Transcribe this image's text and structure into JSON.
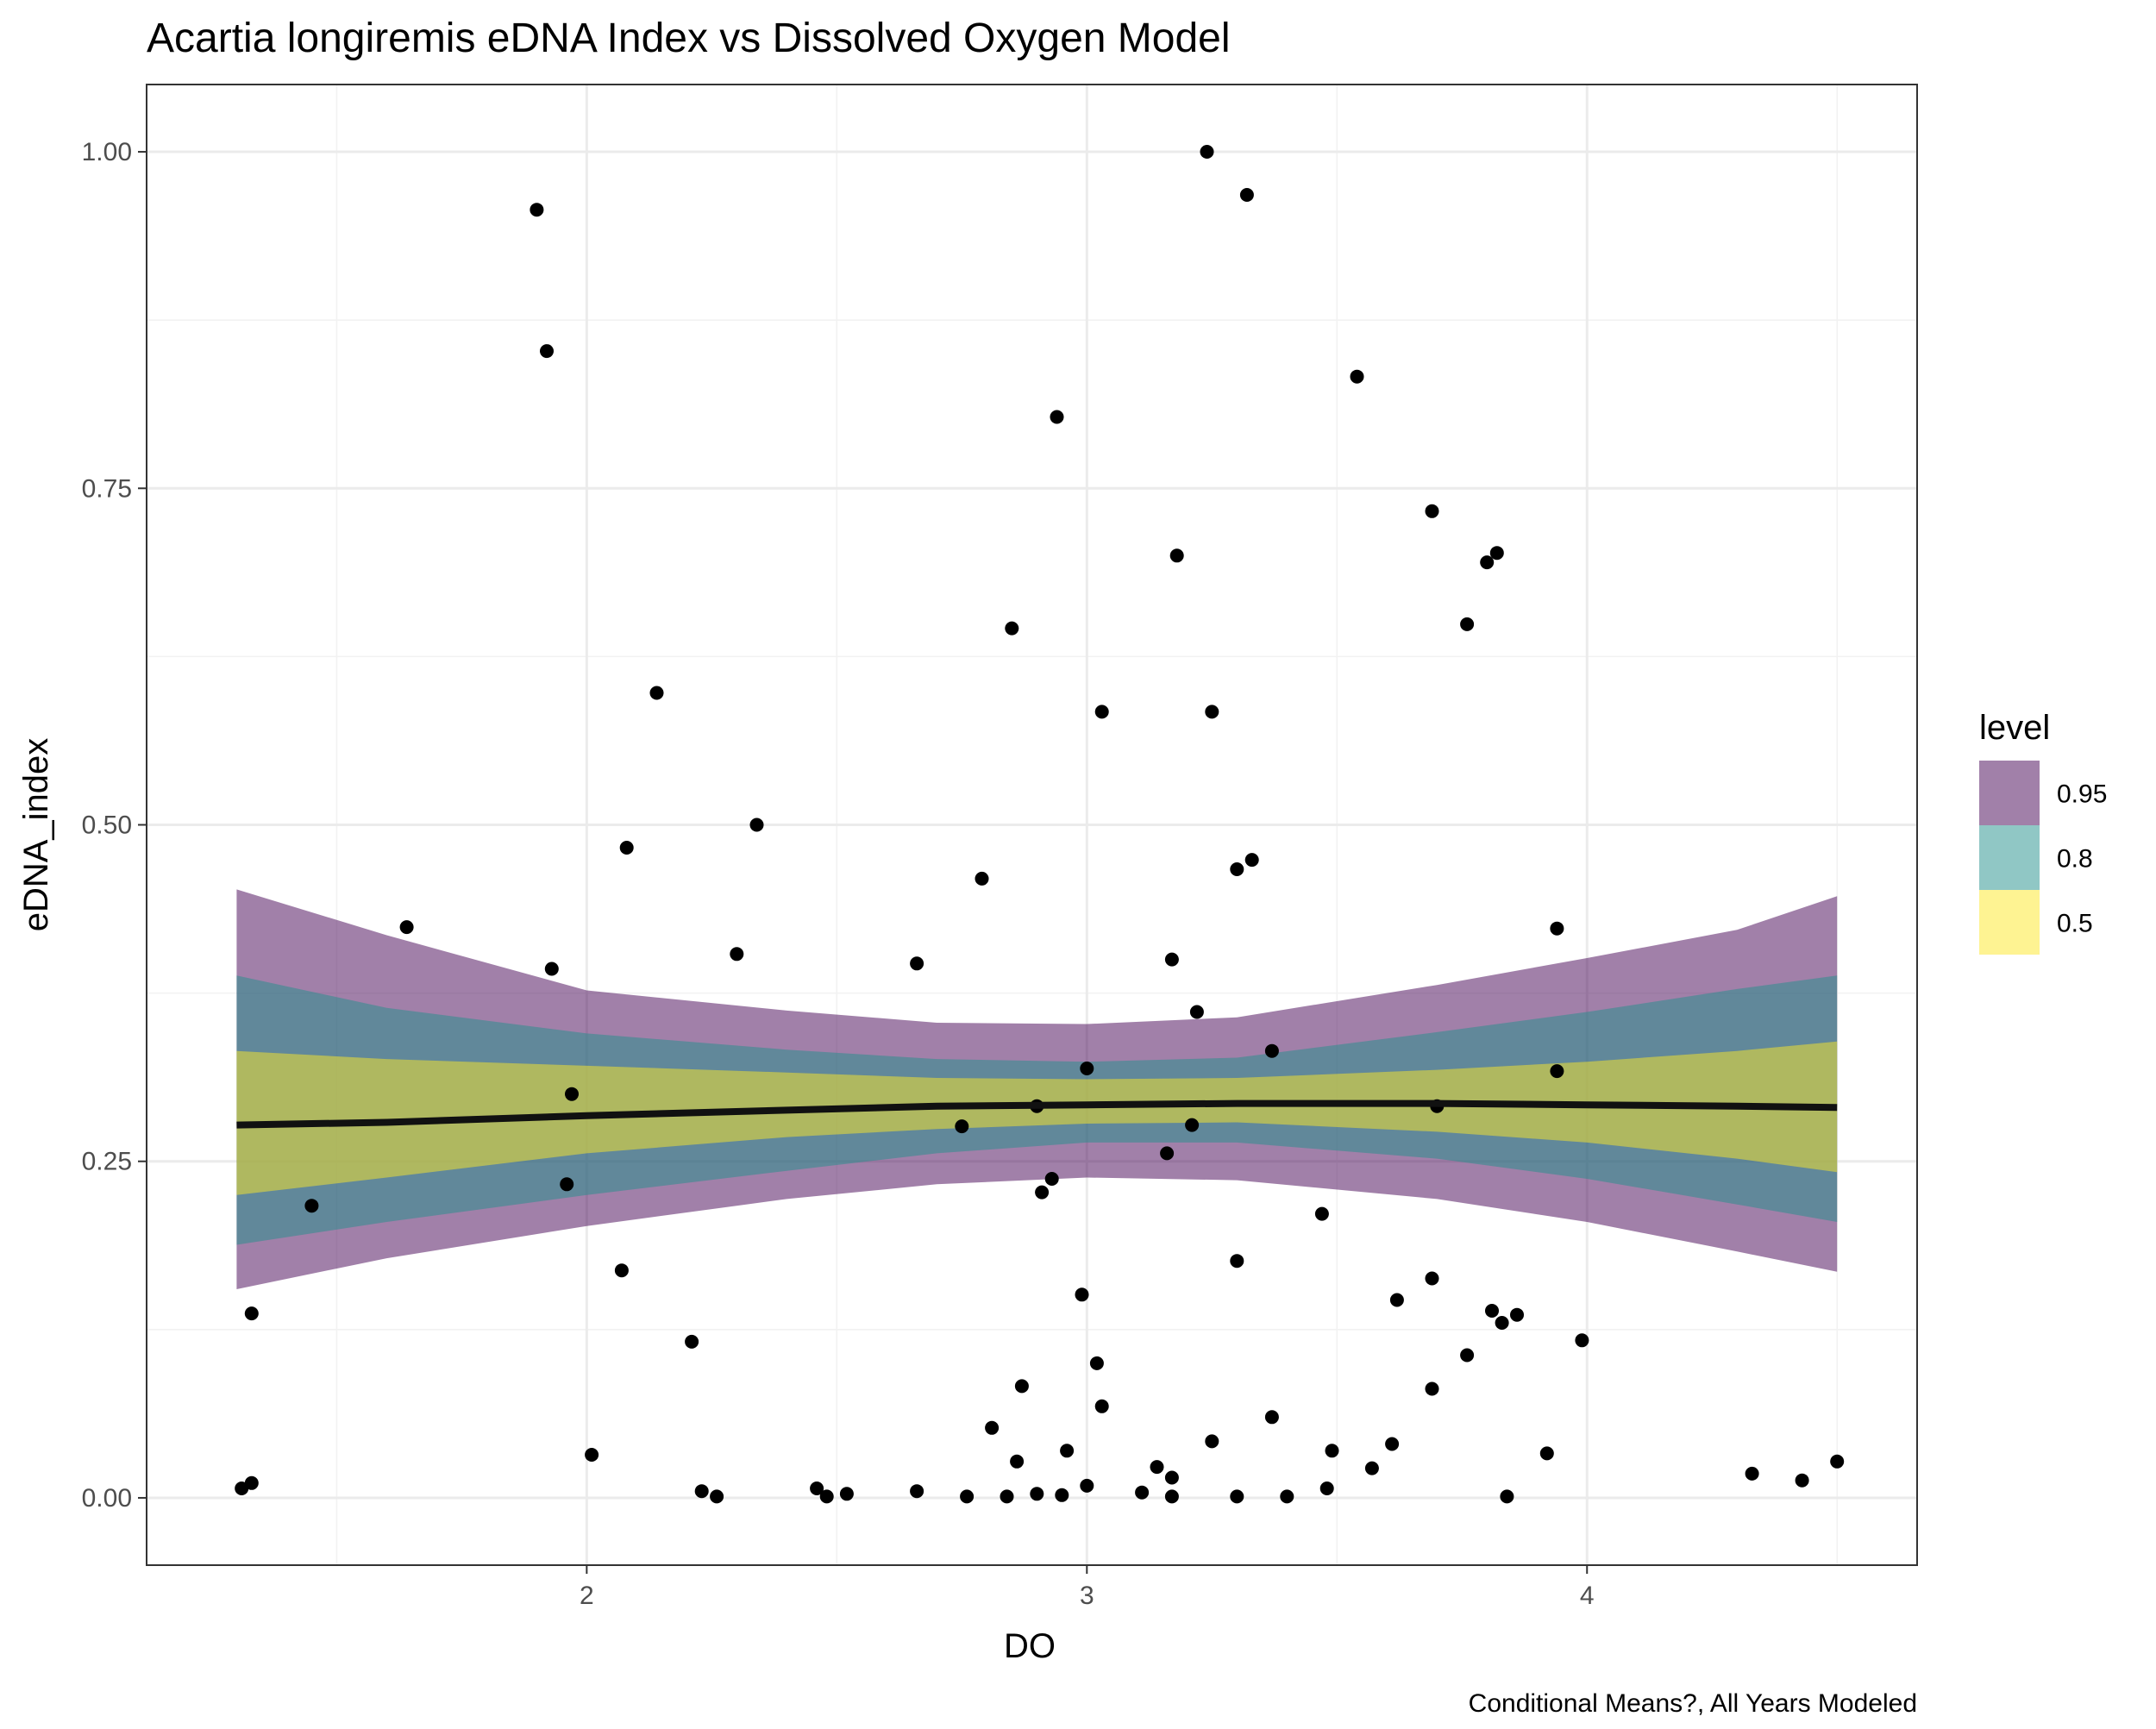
{
  "chart_data": {
    "type": "scatter",
    "title": "Acartia longiremis eDNA Index vs Dissolved Oxygen Model",
    "xlabel": "DO",
    "ylabel": "eDNA_index",
    "caption": "Conditional Means?, All Years Modeled",
    "xlim": [
      1.12,
      4.66
    ],
    "ylim": [
      -0.05,
      1.05
    ],
    "x_ticks": [
      2,
      3,
      4
    ],
    "x_tick_labels": [
      "2",
      "3",
      "4"
    ],
    "y_ticks": [
      0,
      0.25,
      0.5,
      0.75,
      1
    ],
    "y_tick_labels": [
      "0.00",
      "0.25",
      "0.50",
      "0.75",
      "1.00"
    ],
    "grid": true,
    "legend": {
      "title": "level",
      "position": "right",
      "items": [
        {
          "label": "0.95",
          "color": "#440154"
        },
        {
          "label": "0.8",
          "color": "#21908C"
        },
        {
          "label": "0.5",
          "color": "#FDE725"
        }
      ]
    },
    "fit_line": {
      "color": "#111111",
      "x": [
        1.3,
        1.6,
        2.0,
        2.4,
        2.7,
        3.0,
        3.3,
        3.7,
        4.0,
        4.3,
        4.5
      ],
      "y": [
        0.277,
        0.279,
        0.284,
        0.288,
        0.291,
        0.292,
        0.293,
        0.293,
        0.292,
        0.291,
        0.29
      ]
    },
    "ribbons": [
      {
        "level": "0.95",
        "color": "#440154",
        "opacity": 0.5,
        "x": [
          1.3,
          1.6,
          2.0,
          2.4,
          2.7,
          3.0,
          3.3,
          3.7,
          4.0,
          4.3,
          4.5
        ],
        "lower": [
          0.155,
          0.178,
          0.202,
          0.222,
          0.233,
          0.238,
          0.236,
          0.222,
          0.205,
          0.183,
          0.168
        ],
        "upper": [
          0.452,
          0.418,
          0.377,
          0.362,
          0.353,
          0.352,
          0.357,
          0.381,
          0.401,
          0.422,
          0.447
        ]
      },
      {
        "level": "0.8",
        "color": "#21908C",
        "opacity": 0.5,
        "x": [
          1.3,
          1.6,
          2.0,
          2.4,
          2.7,
          3.0,
          3.3,
          3.7,
          4.0,
          4.3,
          4.5
        ],
        "lower": [
          0.188,
          0.205,
          0.225,
          0.243,
          0.256,
          0.264,
          0.264,
          0.252,
          0.237,
          0.218,
          0.205
        ],
        "upper": [
          0.388,
          0.364,
          0.345,
          0.333,
          0.326,
          0.324,
          0.327,
          0.346,
          0.361,
          0.378,
          0.388
        ]
      },
      {
        "level": "0.5",
        "color": "#FDE725",
        "opacity": 0.5,
        "x": [
          1.3,
          1.6,
          2.0,
          2.4,
          2.7,
          3.0,
          3.3,
          3.7,
          4.0,
          4.3,
          4.5
        ],
        "lower": [
          0.225,
          0.238,
          0.256,
          0.268,
          0.274,
          0.278,
          0.279,
          0.272,
          0.264,
          0.252,
          0.242
        ],
        "upper": [
          0.332,
          0.326,
          0.321,
          0.316,
          0.312,
          0.311,
          0.312,
          0.318,
          0.324,
          0.332,
          0.339
        ]
      }
    ],
    "series": [
      {
        "name": "observations",
        "color": "#000000",
        "points": [
          [
            1.9,
            0.957
          ],
          [
            1.92,
            0.852
          ],
          [
            3.24,
            1.0
          ],
          [
            3.32,
            0.968
          ],
          [
            3.54,
            0.833
          ],
          [
            2.94,
            0.803
          ],
          [
            3.69,
            0.733
          ],
          [
            3.82,
            0.702
          ],
          [
            3.8,
            0.695
          ],
          [
            3.18,
            0.7
          ],
          [
            2.85,
            0.646
          ],
          [
            3.76,
            0.649
          ],
          [
            2.14,
            0.598
          ],
          [
            3.03,
            0.584
          ],
          [
            3.25,
            0.584
          ],
          [
            2.08,
            0.483
          ],
          [
            2.34,
            0.5
          ],
          [
            3.33,
            0.474
          ],
          [
            3.3,
            0.467
          ],
          [
            2.79,
            0.46
          ],
          [
            1.64,
            0.424
          ],
          [
            3.94,
            0.423
          ],
          [
            1.93,
            0.393
          ],
          [
            2.3,
            0.404
          ],
          [
            2.66,
            0.397
          ],
          [
            3.17,
            0.4
          ],
          [
            3.22,
            0.361
          ],
          [
            3.0,
            0.319
          ],
          [
            3.37,
            0.332
          ],
          [
            3.94,
            0.317
          ],
          [
            1.97,
            0.3
          ],
          [
            2.75,
            0.276
          ],
          [
            2.9,
            0.291
          ],
          [
            3.21,
            0.277
          ],
          [
            3.7,
            0.291
          ],
          [
            3.16,
            0.256
          ],
          [
            1.96,
            0.233
          ],
          [
            1.45,
            0.217
          ],
          [
            2.93,
            0.237
          ],
          [
            2.91,
            0.227
          ],
          [
            3.47,
            0.211
          ],
          [
            3.3,
            0.176
          ],
          [
            2.07,
            0.169
          ],
          [
            3.69,
            0.163
          ],
          [
            2.99,
            0.151
          ],
          [
            3.62,
            0.147
          ],
          [
            1.33,
            0.137
          ],
          [
            3.81,
            0.139
          ],
          [
            3.86,
            0.136
          ],
          [
            3.83,
            0.13
          ],
          [
            2.21,
            0.116
          ],
          [
            3.99,
            0.117
          ],
          [
            3.76,
            0.106
          ],
          [
            3.02,
            0.1
          ],
          [
            2.87,
            0.083
          ],
          [
            3.69,
            0.081
          ],
          [
            3.03,
            0.068
          ],
          [
            3.37,
            0.06
          ],
          [
            2.81,
            0.052
          ],
          [
            3.25,
            0.042
          ],
          [
            3.61,
            0.04
          ],
          [
            2.96,
            0.035
          ],
          [
            3.49,
            0.035
          ],
          [
            3.92,
            0.033
          ],
          [
            2.01,
            0.032
          ],
          [
            2.86,
            0.027
          ],
          [
            4.5,
            0.027
          ],
          [
            3.14,
            0.023
          ],
          [
            3.57,
            0.022
          ],
          [
            4.33,
            0.018
          ],
          [
            3.17,
            0.015
          ],
          [
            4.43,
            0.013
          ],
          [
            1.33,
            0.011
          ],
          [
            3.0,
            0.009
          ],
          [
            1.31,
            0.007
          ],
          [
            2.46,
            0.007
          ],
          [
            3.48,
            0.007
          ],
          [
            2.23,
            0.005
          ],
          [
            2.66,
            0.005
          ],
          [
            3.11,
            0.004
          ],
          [
            2.52,
            0.003
          ],
          [
            2.9,
            0.003
          ],
          [
            2.95,
            0.002
          ],
          [
            2.48,
            0.001
          ],
          [
            2.26,
            0.001
          ],
          [
            2.76,
            0.001
          ],
          [
            2.84,
            0.001
          ],
          [
            3.17,
            0.001
          ],
          [
            3.3,
            0.001
          ],
          [
            3.4,
            0.001
          ],
          [
            3.84,
            0.001
          ]
        ]
      }
    ]
  }
}
